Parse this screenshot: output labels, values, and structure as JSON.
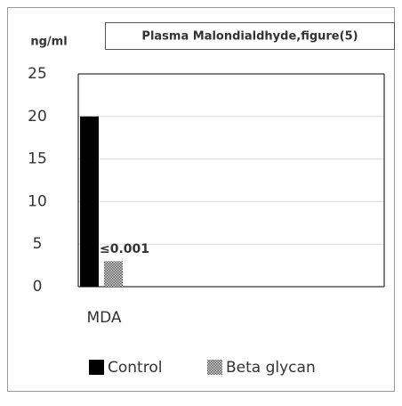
{
  "chart_data": {
    "type": "bar",
    "title": "Plasma Malondialdhyde,figure(5)",
    "y_label": "ng/ml",
    "categories": [
      "MDA"
    ],
    "series": [
      {
        "name": "Control",
        "color": "#000000",
        "values": [
          20
        ]
      },
      {
        "name": "Beta glycan",
        "color": "#555555",
        "values": [
          3
        ]
      }
    ],
    "annotation": "≤0.001",
    "ylim": [
      0,
      25
    ],
    "yticks": [
      0,
      5,
      10,
      15,
      20,
      25
    ],
    "grid": true,
    "legend": "bottom"
  }
}
